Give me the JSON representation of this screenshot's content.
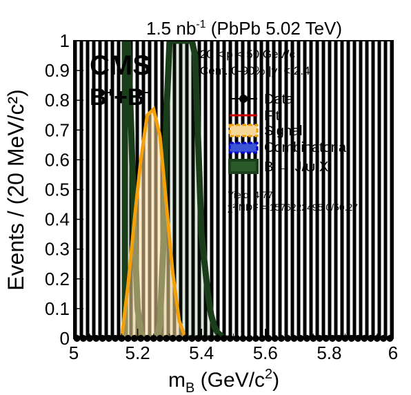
{
  "chart_data": {
    "type": "line",
    "top_label": "1.5 nb",
    "top_label_sup": "-1",
    "top_label_rest": " (PbPb 5.02 TeV)",
    "experiment": "CMS",
    "channel": "B",
    "channel_sup": "+",
    "channel_rest": "+B",
    "channel_sup2": "−",
    "kin_pt": "20 < p  < 50 GeV/c",
    "kin_cent": "Cent. 0-90%  |y| < 2.4",
    "xlabel_main": "m",
    "xlabel_sub": "B",
    "xlabel_rest": " (GeV/c",
    "xlabel_sup": "2",
    "xlabel_end": ")",
    "ylabel": "Events / (20 MeV/c²)",
    "xlim": [
      5.0,
      6.0
    ],
    "ylim": [
      0.0,
      1.0
    ],
    "xticks": [
      "5",
      "5.2",
      "5.4",
      "5.6",
      "5.8",
      "6"
    ],
    "yticks": [
      "0",
      "0.1",
      "0.2",
      "0.3",
      "0.4",
      "0.5",
      "0.6",
      "0.7",
      "0.8",
      "0.9",
      "1"
    ],
    "legend": [
      {
        "label": "Data",
        "style": "marker",
        "color": "#000000"
      },
      {
        "label": "Fit",
        "style": "line",
        "color": "#cc0000"
      },
      {
        "label": "Signal",
        "style": "hatched",
        "color": "#f2a10d"
      },
      {
        "label": "Combinatorial",
        "style": "dashed",
        "color": "#0000cc"
      },
      {
        "label": "B → J/ψ X",
        "style": "box",
        "color": "#1a3d1a"
      }
    ],
    "yield_text": "Yield: 4.77",
    "chi2_text": "χ²/NDF = 1576222495.0/50.27",
    "colors": {
      "signal": "#f2a10d",
      "background_jpsi": "#1a3d1a",
      "data": "#000000"
    },
    "series": [
      {
        "name": "Data",
        "x": [
          5.01,
          5.03,
          5.05,
          5.07,
          5.09,
          5.11,
          5.13,
          5.15,
          5.17,
          5.19,
          5.21,
          5.23,
          5.25,
          5.27,
          5.29,
          5.31,
          5.33,
          5.35,
          5.37,
          5.39,
          5.41,
          5.43,
          5.45,
          5.47,
          5.49,
          5.51,
          5.53,
          5.55,
          5.57,
          5.59,
          5.61,
          5.63,
          5.65,
          5.67,
          5.69,
          5.71,
          5.73,
          5.75,
          5.77,
          5.79,
          5.81,
          5.83,
          5.85,
          5.87,
          5.89,
          5.91,
          5.93,
          5.95,
          5.97,
          5.99
        ],
        "values": [
          0,
          0,
          0,
          0,
          0,
          0,
          0,
          0,
          0,
          0,
          0,
          0,
          0,
          0,
          0,
          0,
          0,
          0,
          0,
          0,
          0,
          0,
          0,
          0,
          0,
          0,
          0,
          0,
          0,
          0,
          0,
          0,
          0,
          0,
          0,
          0,
          0,
          0,
          0,
          0,
          0,
          0,
          0,
          0,
          0,
          0,
          0,
          0,
          0,
          0
        ]
      },
      {
        "name": "Signal",
        "x": [
          5.15,
          5.17,
          5.19,
          5.21,
          5.23,
          5.25,
          5.27,
          5.29,
          5.31,
          5.33,
          5.35
        ],
        "values": [
          0.0,
          0.18,
          0.4,
          0.6,
          0.75,
          0.77,
          0.68,
          0.45,
          0.22,
          0.06,
          0.0
        ]
      },
      {
        "name": "B → J/ψ X",
        "x": [
          5.16,
          5.17,
          5.18,
          5.19,
          5.2,
          5.21,
          5.22,
          5.23,
          5.24,
          5.25,
          5.26,
          5.27,
          5.28,
          5.29,
          5.3,
          5.31,
          5.32,
          5.33,
          5.34,
          5.35,
          5.36,
          5.37,
          5.38,
          5.39,
          5.4,
          5.41,
          5.42,
          5.43,
          5.44,
          5.45,
          5.46,
          5.47,
          5.48
        ],
        "values": [
          1.0,
          1.0,
          0.7,
          0.35,
          0.1,
          0.02,
          0.0,
          0.0,
          0.0,
          0.0,
          0.0,
          0.05,
          0.3,
          0.75,
          1.0,
          1.0,
          1.0,
          1.0,
          1.0,
          1.0,
          1.0,
          1.0,
          0.95,
          0.65,
          0.35,
          0.25,
          0.15,
          0.08,
          0.04,
          0.02,
          0.01,
          0.0,
          0.0
        ]
      }
    ]
  }
}
